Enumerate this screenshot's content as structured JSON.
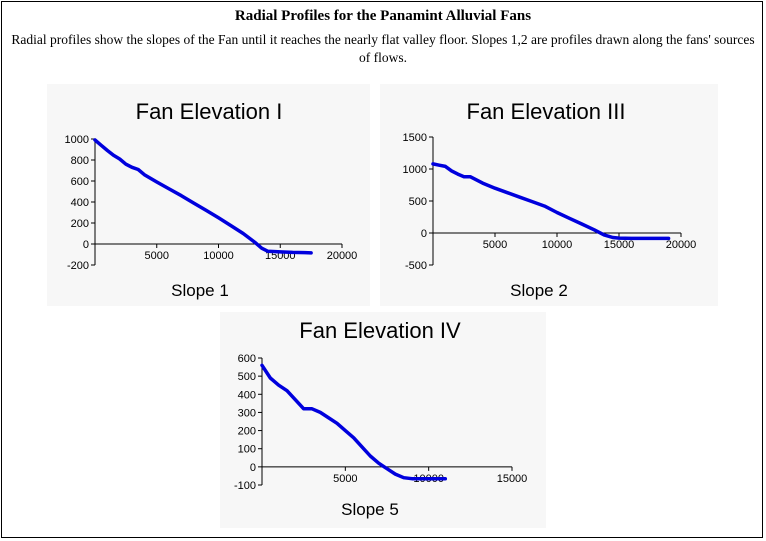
{
  "page": {
    "title": "Radial Profiles for the Panamint Alluvial Fans",
    "description": "Radial profiles show the slopes of the Fan until it reaches the nearly flat valley floor. Slopes 1,2 are profiles drawn along the fans' sources of flows."
  },
  "colors": {
    "line": "#0000dd",
    "panel": "#f7f7f7",
    "axis": "#000000"
  },
  "chart_data": [
    {
      "type": "line",
      "title": "Fan Elevation I",
      "xlabel": "Slope 1",
      "ylabel": "",
      "xlim": [
        0,
        20000
      ],
      "ylim": [
        -200,
        1000
      ],
      "xticks": [
        5000,
        10000,
        15000,
        20000
      ],
      "yticks": [
        -200,
        0,
        200,
        400,
        600,
        800,
        1000
      ],
      "grid": false,
      "series": [
        {
          "x": [
            0,
            500,
            1000,
            1500,
            2000,
            2500,
            3000,
            3500,
            4000,
            5000,
            6000,
            7000,
            8000,
            9000,
            10000,
            11000,
            12000,
            13000,
            13500,
            14000,
            15000,
            16000,
            17000,
            17500
          ],
          "y": [
            990,
            940,
            890,
            845,
            810,
            760,
            730,
            710,
            660,
            590,
            525,
            460,
            390,
            320,
            250,
            175,
            100,
            10,
            -40,
            -70,
            -75,
            -80,
            -82,
            -85
          ]
        }
      ]
    },
    {
      "type": "line",
      "title": "Fan Elevation III",
      "xlabel": "Slope 2",
      "ylabel": "",
      "xlim": [
        0,
        20000
      ],
      "ylim": [
        -500,
        1500
      ],
      "xticks": [
        5000,
        10000,
        15000,
        20000
      ],
      "yticks": [
        -500,
        0,
        500,
        1000,
        1500
      ],
      "grid": false,
      "series": [
        {
          "x": [
            0,
            500,
            1000,
            1500,
            2000,
            2500,
            3000,
            4000,
            5000,
            6000,
            7000,
            8000,
            9000,
            10000,
            11000,
            12000,
            13000,
            13800,
            14500,
            15000,
            16000,
            17000,
            18000,
            19000
          ],
          "y": [
            1080,
            1060,
            1040,
            970,
            920,
            880,
            880,
            780,
            700,
            630,
            560,
            490,
            420,
            320,
            230,
            140,
            50,
            -30,
            -70,
            -80,
            -85,
            -85,
            -85,
            -85
          ]
        }
      ]
    },
    {
      "type": "line",
      "title": "Fan Elevation IV",
      "xlabel": "Slope 5",
      "ylabel": "",
      "xlim": [
        0,
        15000
      ],
      "ylim": [
        -100,
        600
      ],
      "xticks": [
        5000,
        10000,
        15000
      ],
      "yticks": [
        -100,
        0,
        100,
        200,
        300,
        400,
        500,
        600
      ],
      "grid": false,
      "series": [
        {
          "x": [
            0,
            500,
            1000,
            1500,
            2000,
            2500,
            3000,
            3500,
            4000,
            4500,
            5000,
            5500,
            6000,
            6500,
            7000,
            7500,
            8000,
            8500,
            9000,
            10000,
            11000
          ],
          "y": [
            560,
            490,
            450,
            420,
            370,
            320,
            320,
            300,
            270,
            240,
            200,
            160,
            110,
            60,
            20,
            -10,
            -40,
            -60,
            -65,
            -65,
            -65
          ]
        }
      ]
    }
  ]
}
